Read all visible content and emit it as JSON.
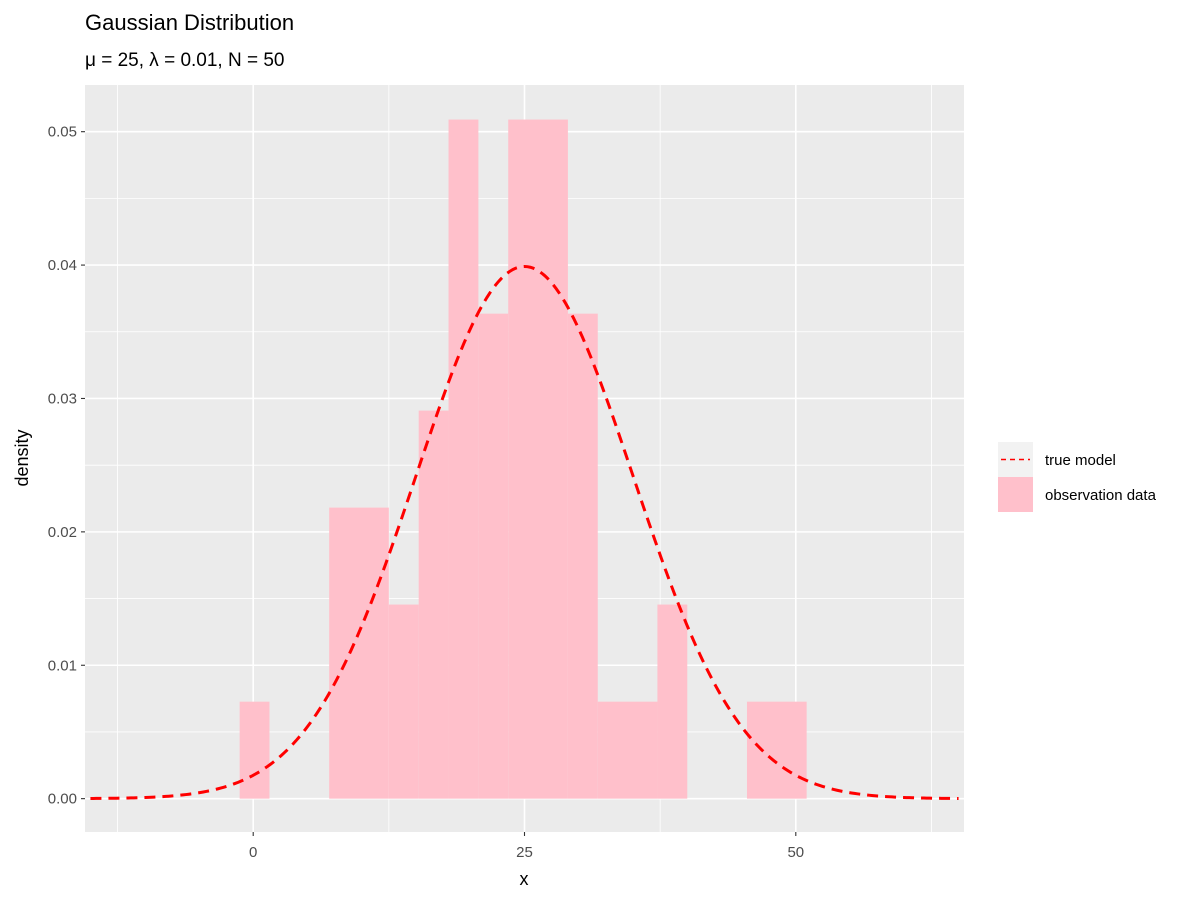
{
  "chart_data": {
    "type": "bar",
    "title": "Gaussian Distribution",
    "subtitle": "μ = 25, λ = 0.01, N = 50",
    "xlabel": "x",
    "ylabel": "density",
    "xlim": [
      -15.5,
      65.5
    ],
    "ylim": [
      -0.0025,
      0.0535
    ],
    "x_ticks": [
      0,
      25,
      50
    ],
    "x_tick_labels": [
      "0",
      "25",
      "50"
    ],
    "y_ticks": [
      0.0,
      0.01,
      0.02,
      0.03,
      0.04,
      0.05
    ],
    "y_tick_labels": [
      "0.00",
      "0.01",
      "0.02",
      "0.03",
      "0.04",
      "0.05"
    ],
    "grid": true,
    "legend_position": "right",
    "series": [
      {
        "name": "observation data",
        "type": "histogram",
        "color": "#FFC0CB",
        "bins": [
          {
            "x0": -1.25,
            "x1": 1.5,
            "density": 0.00727
          },
          {
            "x0": 7.0,
            "x1": 12.5,
            "density": 0.02182
          },
          {
            "x0": 12.5,
            "x1": 15.25,
            "density": 0.01455
          },
          {
            "x0": 15.25,
            "x1": 18.0,
            "density": 0.02909
          },
          {
            "x0": 18.0,
            "x1": 20.75,
            "density": 0.05091
          },
          {
            "x0": 20.75,
            "x1": 23.5,
            "density": 0.03636
          },
          {
            "x0": 23.5,
            "x1": 29.0,
            "density": 0.05091
          },
          {
            "x0": 29.0,
            "x1": 31.75,
            "density": 0.03636
          },
          {
            "x0": 31.75,
            "x1": 37.25,
            "density": 0.00727
          },
          {
            "x0": 37.25,
            "x1": 40.0,
            "density": 0.01455
          },
          {
            "x0": 45.5,
            "x1": 51.0,
            "density": 0.00727
          }
        ]
      },
      {
        "name": "true model",
        "type": "line",
        "style": "dashed",
        "color": "#FF0000",
        "function": "normal",
        "mean": 25,
        "sd": 10,
        "x_range": [
          -15,
          65
        ]
      }
    ],
    "legend": [
      {
        "label": "true model",
        "key": "dashed-line",
        "color": "#FF0000"
      },
      {
        "label": "observation data",
        "key": "fill",
        "color": "#FFC0CB"
      }
    ]
  }
}
